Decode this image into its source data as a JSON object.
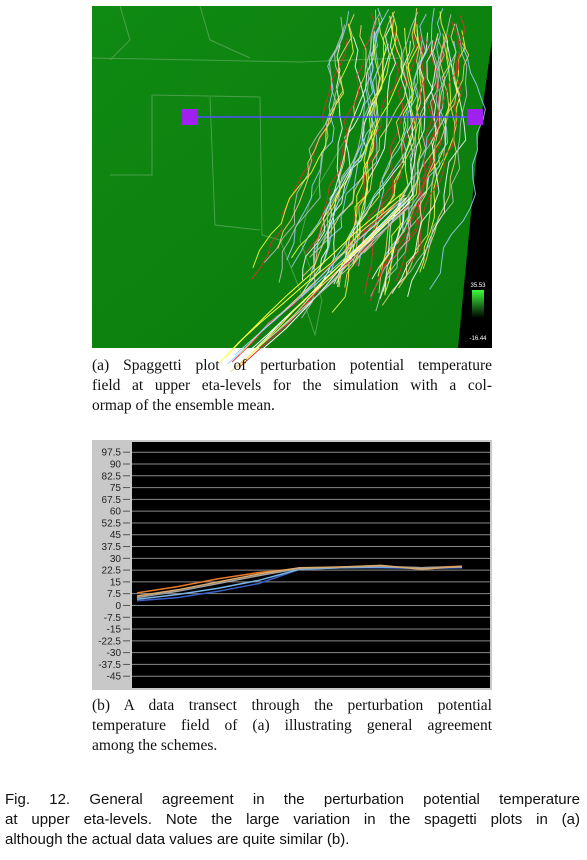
{
  "figure_a": {
    "colorbar_max": 35.53,
    "colorbar_min": -16.44,
    "caption_lines": [
      "(a) Spaggetti plot of perturbation potential temperature",
      "field at upper eta-levels for the simulation with a col-",
      "ormap of the ensemble mean."
    ]
  },
  "figure_b": {
    "chart_data": {
      "type": "line",
      "categories": [
        null,
        null,
        null,
        null,
        null,
        null,
        null,
        null,
        null
      ],
      "series": [
        {
          "color": "#e8792a",
          "values": [
            8,
            12,
            17,
            21,
            23.5,
            24,
            24.5,
            24,
            25
          ]
        },
        {
          "color": "#3a5fc8",
          "values": [
            3,
            5,
            9,
            14,
            23,
            24,
            24,
            23.5,
            24
          ]
        },
        {
          "color": "#7ab4e8",
          "values": [
            4,
            7,
            11,
            16,
            23,
            24,
            24.5,
            24,
            24.5
          ]
        },
        {
          "color": "#a0a0a0",
          "values": [
            5,
            9,
            14,
            19,
            23.5,
            24.5,
            25,
            24,
            24.5
          ]
        },
        {
          "color": "#d9a86b",
          "values": [
            6,
            10,
            15,
            20,
            24,
            24.5,
            25.5,
            23,
            25
          ]
        }
      ],
      "ylim": [
        -52.5,
        104
      ],
      "yticks": [
        97.5,
        90,
        82.5,
        75,
        67.5,
        60,
        52.5,
        45,
        37.5,
        30,
        22.5,
        15,
        7.5,
        0,
        -7.5,
        -15,
        -22.5,
        -30,
        -37.5,
        -45
      ],
      "grid": true
    },
    "caption_lines": [
      "(b) A data transect through the perturbation potential",
      "temperature field of (a) illustrating general agreement",
      "among the schemes."
    ]
  },
  "caption_lines": [
    "Fig. 12.  General agreement in the perturbation potential temperature",
    "at upper eta-levels. Note the large variation in the spagetti plots in (a)",
    "although the actual data values are quite similar (b)."
  ]
}
